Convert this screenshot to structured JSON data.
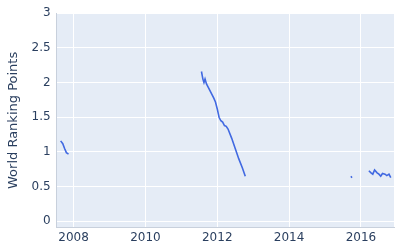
{
  "chart_data": {
    "type": "line",
    "y_label": "World Ranking Points",
    "x": [
      2007.64,
      2007.7,
      2007.75,
      2007.8,
      2007.86,
      2010,
      2011.56,
      2011.6,
      2011.63,
      2011.66,
      2011.7,
      2011.75,
      2011.8,
      2011.85,
      2011.9,
      2011.95,
      2012.0,
      2012.05,
      2012.1,
      2012.15,
      2012.2,
      2012.25,
      2012.3,
      2012.4,
      2012.5,
      2012.6,
      2012.7,
      2012.78,
      2014,
      2015.72,
      2015.75,
      2016.0,
      2016.22,
      2016.28,
      2016.33,
      2016.38,
      2016.45,
      2016.5,
      2016.55,
      2016.6,
      2016.67,
      2016.72,
      2016.78,
      2016.83
    ],
    "values": [
      1.16,
      1.12,
      1.05,
      0.99,
      0.97,
      null,
      2.16,
      2.05,
      2.0,
      2.05,
      1.98,
      1.93,
      1.88,
      1.83,
      1.78,
      1.72,
      1.62,
      1.5,
      1.45,
      1.43,
      1.38,
      1.37,
      1.33,
      1.2,
      1.05,
      0.9,
      0.77,
      0.65,
      null,
      0.65,
      0.63,
      null,
      0.73,
      0.7,
      0.68,
      0.74,
      0.7,
      0.68,
      0.65,
      0.69,
      0.68,
      0.66,
      0.68,
      0.63
    ],
    "color": "#4169e1",
    "xlim": [
      2007.53,
      2016.92
    ],
    "xticks": [
      2008,
      2010,
      2012,
      2014,
      2016
    ],
    "ylim": [
      -0.09,
      3
    ],
    "yticks": [
      0,
      0.5,
      1,
      1.5,
      2,
      2.5,
      3
    ],
    "grid": true
  }
}
